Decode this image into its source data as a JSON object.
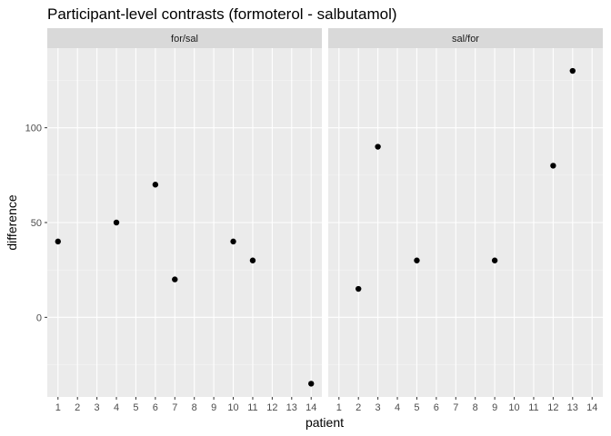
{
  "chart_data": {
    "type": "scatter",
    "title": "Participant-level contrasts (formoterol - salbutamol)",
    "xlabel": "patient",
    "ylabel": "difference",
    "x_ticks": [
      "1",
      "2",
      "3",
      "4",
      "5",
      "6",
      "7",
      "8",
      "9",
      "10",
      "11",
      "12",
      "13",
      "14"
    ],
    "xlim": [
      0.45,
      14.55
    ],
    "y_ticks": [
      0,
      50,
      100
    ],
    "ylim": [
      -42,
      142
    ],
    "grid": true,
    "facets": [
      {
        "label": "for/sal",
        "points": [
          {
            "x": 1,
            "y": 40
          },
          {
            "x": 4,
            "y": 50
          },
          {
            "x": 6,
            "y": 70
          },
          {
            "x": 7,
            "y": 20
          },
          {
            "x": 10,
            "y": 40
          },
          {
            "x": 11,
            "y": 30
          },
          {
            "x": 14,
            "y": -35
          }
        ]
      },
      {
        "label": "sal/for",
        "points": [
          {
            "x": 2,
            "y": 15
          },
          {
            "x": 3,
            "y": 90
          },
          {
            "x": 5,
            "y": 30
          },
          {
            "x": 9,
            "y": 30
          },
          {
            "x": 12,
            "y": 80
          },
          {
            "x": 13,
            "y": 130
          }
        ]
      }
    ]
  }
}
